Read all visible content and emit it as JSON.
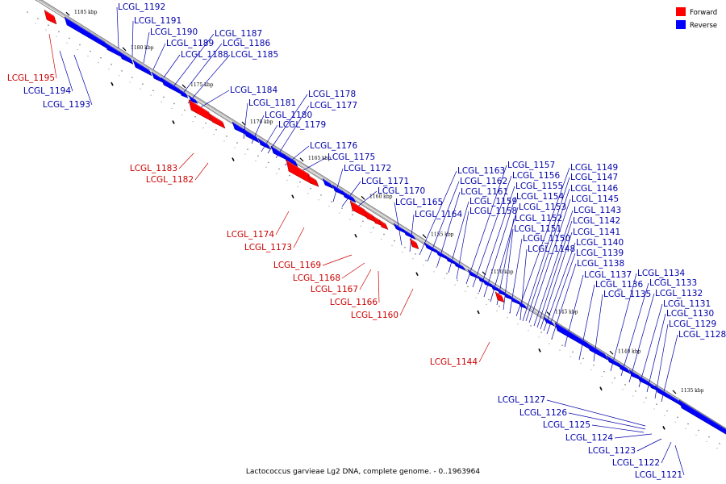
{
  "caption": "Lactococcus garvieae Lg2 DNA, complete genome. - 0..1963964",
  "legend": [
    {
      "label": "Forward",
      "color": "#ff0000"
    },
    {
      "label": "Reverse",
      "color": "#0000ff"
    }
  ],
  "colors": {
    "forward": "#ff0000",
    "forward_label": "#cc0000",
    "reverse": "#0000ff",
    "reverse_label": "#0000aa",
    "axis": "#999999"
  },
  "ticks": [
    "1185 kbp",
    "1180 kbp",
    "1175 kbp",
    "1170 kbp",
    "1165 kbp",
    "1160 kbp",
    "1155 kbp",
    "1150 kbp",
    "1145 kbp",
    "1140 kbp",
    "1135 kbp"
  ],
  "genes": [
    {
      "name": "LCGL_1195",
      "strand": "forward"
    },
    {
      "name": "LCGL_1194",
      "strand": "reverse"
    },
    {
      "name": "LCGL_1193",
      "strand": "reverse"
    },
    {
      "name": "LCGL_1192",
      "strand": "reverse"
    },
    {
      "name": "LCGL_1191",
      "strand": "reverse"
    },
    {
      "name": "LCGL_1190",
      "strand": "reverse"
    },
    {
      "name": "LCGL_1189",
      "strand": "reverse"
    },
    {
      "name": "LCGL_1188",
      "strand": "reverse"
    },
    {
      "name": "LCGL_1187",
      "strand": "reverse"
    },
    {
      "name": "LCGL_1186",
      "strand": "reverse"
    },
    {
      "name": "LCGL_1185",
      "strand": "reverse"
    },
    {
      "name": "LCGL_1184",
      "strand": "reverse"
    },
    {
      "name": "LCGL_1183",
      "strand": "forward"
    },
    {
      "name": "LCGL_1182",
      "strand": "forward"
    },
    {
      "name": "LCGL_1181",
      "strand": "reverse"
    },
    {
      "name": "LCGL_1180",
      "strand": "reverse"
    },
    {
      "name": "LCGL_1179",
      "strand": "reverse"
    },
    {
      "name": "LCGL_1178",
      "strand": "reverse"
    },
    {
      "name": "LCGL_1177",
      "strand": "reverse"
    },
    {
      "name": "LCGL_1176",
      "strand": "reverse"
    },
    {
      "name": "LCGL_1175",
      "strand": "reverse"
    },
    {
      "name": "LCGL_1174",
      "strand": "forward"
    },
    {
      "name": "LCGL_1173",
      "strand": "forward"
    },
    {
      "name": "LCGL_1172",
      "strand": "reverse"
    },
    {
      "name": "LCGL_1171",
      "strand": "reverse"
    },
    {
      "name": "LCGL_1170",
      "strand": "reverse"
    },
    {
      "name": "LCGL_1169",
      "strand": "forward"
    },
    {
      "name": "LCGL_1168",
      "strand": "forward"
    },
    {
      "name": "LCGL_1167",
      "strand": "forward"
    },
    {
      "name": "LCGL_1166",
      "strand": "forward"
    },
    {
      "name": "LCGL_1165",
      "strand": "reverse"
    },
    {
      "name": "LCGL_1164",
      "strand": "reverse"
    },
    {
      "name": "LCGL_1163",
      "strand": "reverse"
    },
    {
      "name": "LCGL_1162",
      "strand": "reverse"
    },
    {
      "name": "LCGL_1161",
      "strand": "reverse"
    },
    {
      "name": "LCGL_1160",
      "strand": "forward"
    },
    {
      "name": "LCGL_1159",
      "strand": "reverse"
    },
    {
      "name": "LCGL_1158",
      "strand": "reverse"
    },
    {
      "name": "LCGL_1157",
      "strand": "reverse"
    },
    {
      "name": "LCGL_1156",
      "strand": "reverse"
    },
    {
      "name": "LCGL_1155",
      "strand": "reverse"
    },
    {
      "name": "LCGL_1154",
      "strand": "reverse"
    },
    {
      "name": "LCGL_1153",
      "strand": "reverse"
    },
    {
      "name": "LCGL_1152",
      "strand": "reverse"
    },
    {
      "name": "LCGL_1151",
      "strand": "reverse"
    },
    {
      "name": "LCGL_1150",
      "strand": "reverse"
    },
    {
      "name": "LCGL_1149",
      "strand": "reverse"
    },
    {
      "name": "LCGL_1148",
      "strand": "reverse"
    },
    {
      "name": "LCGL_1147",
      "strand": "reverse"
    },
    {
      "name": "LCGL_1146",
      "strand": "reverse"
    },
    {
      "name": "LCGL_1145",
      "strand": "reverse"
    },
    {
      "name": "LCGL_1144",
      "strand": "forward"
    },
    {
      "name": "LCGL_1143",
      "strand": "reverse"
    },
    {
      "name": "LCGL_1142",
      "strand": "reverse"
    },
    {
      "name": "LCGL_1141",
      "strand": "reverse"
    },
    {
      "name": "LCGL_1140",
      "strand": "reverse"
    },
    {
      "name": "LCGL_1139",
      "strand": "reverse"
    },
    {
      "name": "LCGL_1138",
      "strand": "reverse"
    },
    {
      "name": "LCGL_1137",
      "strand": "reverse"
    },
    {
      "name": "LCGL_1136",
      "strand": "reverse"
    },
    {
      "name": "LCGL_1135",
      "strand": "reverse"
    },
    {
      "name": "LCGL_1134",
      "strand": "reverse"
    },
    {
      "name": "LCGL_1133",
      "strand": "reverse"
    },
    {
      "name": "LCGL_1132",
      "strand": "reverse"
    },
    {
      "name": "LCGL_1131",
      "strand": "reverse"
    },
    {
      "name": "LCGL_1130",
      "strand": "reverse"
    },
    {
      "name": "LCGL_1129",
      "strand": "reverse"
    },
    {
      "name": "LCGL_1128",
      "strand": "reverse"
    },
    {
      "name": "LCGL_1127",
      "strand": "reverse"
    },
    {
      "name": "LCGL_1126",
      "strand": "reverse"
    },
    {
      "name": "LCGL_1125",
      "strand": "reverse"
    },
    {
      "name": "LCGL_1124",
      "strand": "reverse"
    },
    {
      "name": "LCGL_1123",
      "strand": "reverse"
    },
    {
      "name": "LCGL_1122",
      "strand": "reverse"
    },
    {
      "name": "LCGL_1121",
      "strand": "reverse"
    }
  ]
}
